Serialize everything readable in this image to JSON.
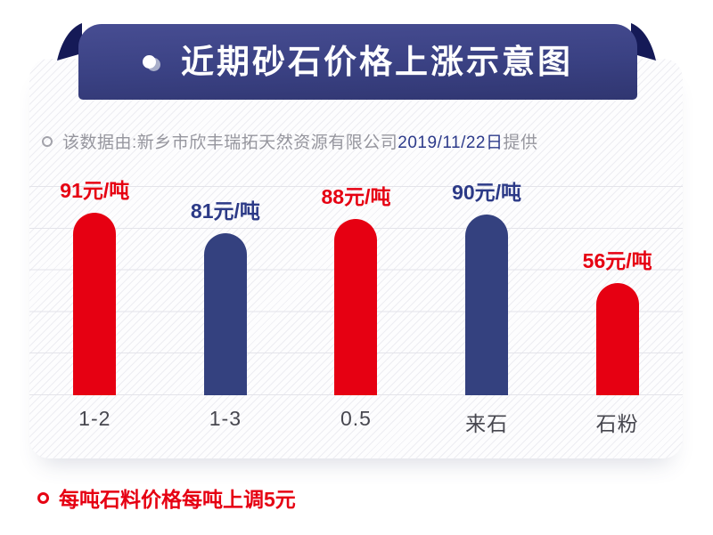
{
  "banner": {
    "title": "近期砂石价格上涨示意图"
  },
  "source_note": {
    "prefix": "该数据由:",
    "company": "新乡市欣丰瑞拓天然资源有限公司",
    "date": "2019/11/22日",
    "suffix": "提供"
  },
  "footnote": {
    "text": "每吨石料价格每吨上调5元"
  },
  "colors": {
    "red": "#e60012",
    "bar_blue": "#34417f",
    "label_blue": "#2c3a87",
    "banner_blue": "#3a4183",
    "fold_navy": "#151a57",
    "source_gray": "#96969e",
    "category_gray": "#47474f",
    "gridline": "#e4e4ea"
  },
  "chart_data": {
    "type": "bar",
    "title": "近期砂石价格上涨示意图",
    "categories": [
      "1-2",
      "1-3",
      "0.5",
      "来石",
      "石粉"
    ],
    "values": [
      91,
      81,
      88,
      90,
      56
    ],
    "unit": "元/吨",
    "value_labels": [
      "91元/吨",
      "81元/吨",
      "88元/吨",
      "90元/吨",
      "56元/吨"
    ],
    "bar_colors": [
      "#e60012",
      "#34417f",
      "#e60012",
      "#34417f",
      "#e60012"
    ],
    "label_colors": [
      "#e60012",
      "#2c3a87",
      "#e60012",
      "#2c3a87",
      "#e60012"
    ],
    "xlabel": "",
    "ylabel": "",
    "ylim": [
      0,
      100
    ],
    "grid": true,
    "gridline_count": 6,
    "legend": null
  }
}
